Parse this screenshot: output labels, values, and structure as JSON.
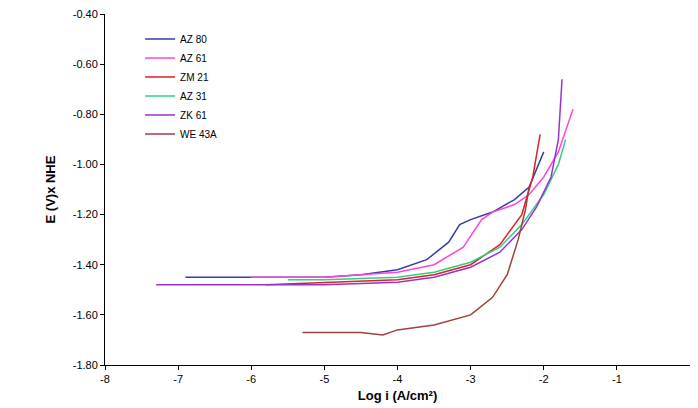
{
  "chart_data": {
    "type": "line",
    "x_label": "Log i (A/cm²)",
    "y_label": "E (V)x NHE",
    "xlim": [
      -8,
      0
    ],
    "xticks": [
      -8,
      -7,
      -6,
      -5,
      -4,
      -3,
      -2,
      -1
    ],
    "ylim": [
      -1.8,
      -0.4
    ],
    "yticks": [
      {
        "value": -1.8,
        "label": "-1.80"
      },
      {
        "value": -1.6,
        "label": "-1.60"
      },
      {
        "value": -1.4,
        "label": "-1.40"
      },
      {
        "value": -1.2,
        "label": "-1.20"
      },
      {
        "value": -1.0,
        "label": "-1.00"
      },
      {
        "value": -0.8,
        "label": "-0.80"
      },
      {
        "value": -0.6,
        "label": "-0.60"
      },
      {
        "value": -0.4,
        "label": "-0.40"
      }
    ],
    "grid": false,
    "legend": "top left",
    "series": [
      {
        "name": "AZ 80",
        "color": "#3a3aa8",
        "x": [
          -6.9,
          -6,
          -5,
          -4.5,
          -4,
          -3.6,
          -3.3,
          -3.15,
          -3.0,
          -2.7,
          -2.4,
          -2.2,
          -2.0
        ],
        "values": [
          -1.45,
          -1.45,
          -1.45,
          -1.44,
          -1.42,
          -1.38,
          -1.31,
          -1.24,
          -1.22,
          -1.19,
          -1.14,
          -1.09,
          -0.95
        ]
      },
      {
        "name": "AZ 61",
        "color": "#ff44dd",
        "x": [
          -6,
          -5,
          -4,
          -3.5,
          -3.1,
          -2.85,
          -2.7,
          -2.4,
          -2.2,
          -2.0,
          -1.8,
          -1.6
        ],
        "values": [
          -1.45,
          -1.45,
          -1.43,
          -1.4,
          -1.33,
          -1.22,
          -1.19,
          -1.16,
          -1.12,
          -1.05,
          -0.95,
          -0.78
        ]
      },
      {
        "name": "ZM 21",
        "color": "#dd2222",
        "x": [
          -5.8,
          -5,
          -4,
          -3.5,
          -3,
          -2.6,
          -2.3,
          -2.15,
          -2.05
        ],
        "values": [
          -1.48,
          -1.47,
          -1.46,
          -1.44,
          -1.4,
          -1.32,
          -1.2,
          -1.05,
          -0.88
        ]
      },
      {
        "name": "AZ 31",
        "color": "#33cc88",
        "x": [
          -5.5,
          -5,
          -4,
          -3.5,
          -3,
          -2.6,
          -2.3,
          -2.0,
          -1.8,
          -1.7
        ],
        "values": [
          -1.46,
          -1.46,
          -1.45,
          -1.43,
          -1.39,
          -1.33,
          -1.24,
          -1.12,
          -1.0,
          -0.9
        ]
      },
      {
        "name": "ZK 61",
        "color": "#9933cc",
        "x": [
          -7.3,
          -6,
          -5,
          -4,
          -3.5,
          -3,
          -2.6,
          -2.3,
          -2.1,
          -1.9,
          -1.8,
          -1.75
        ],
        "values": [
          -1.48,
          -1.48,
          -1.48,
          -1.47,
          -1.45,
          -1.41,
          -1.35,
          -1.26,
          -1.17,
          -1.05,
          -0.9,
          -0.66
        ]
      },
      {
        "name": "WE 43A",
        "color": "#a0403c",
        "x": [
          -5.3,
          -4.5,
          -4.2,
          -4,
          -3.5,
          -3,
          -2.7,
          -2.5,
          -2.35,
          -2.25,
          -2.2
        ],
        "values": [
          -1.67,
          -1.67,
          -1.68,
          -1.66,
          -1.64,
          -1.6,
          -1.53,
          -1.44,
          -1.3,
          -1.18,
          -1.09
        ]
      }
    ]
  }
}
